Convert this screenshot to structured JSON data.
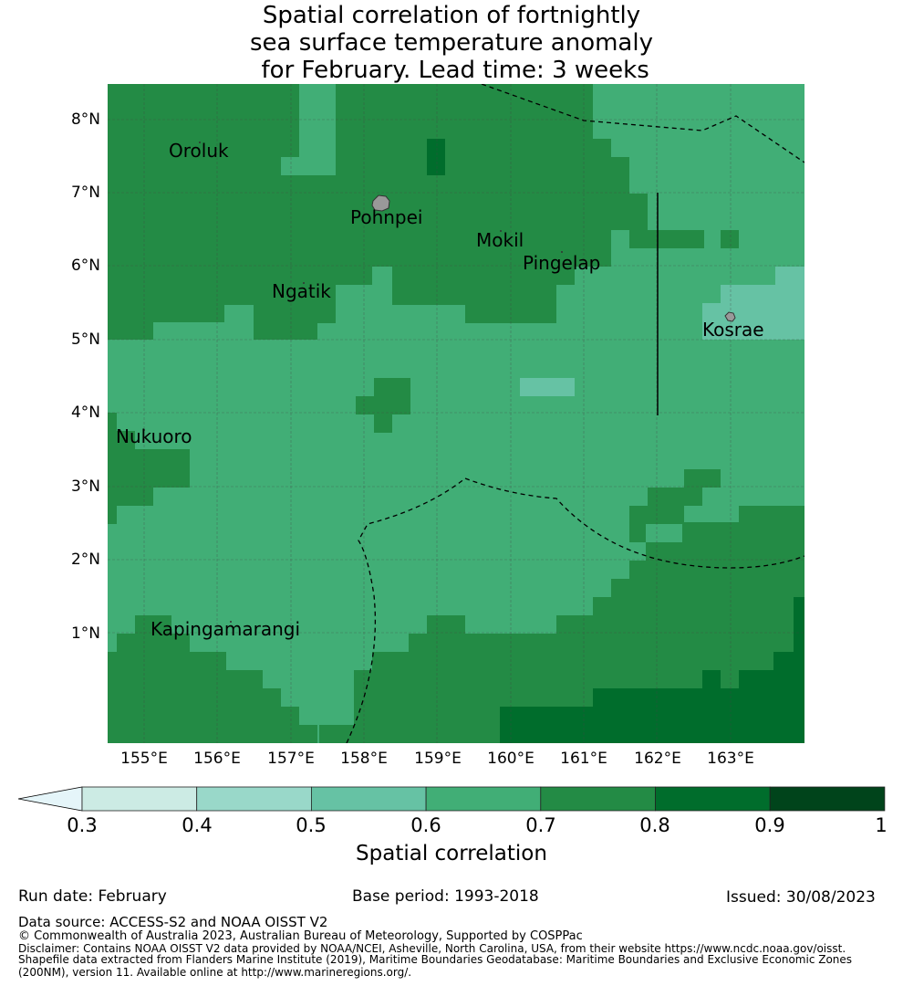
{
  "title_lines": [
    "Spatial correlation of fortnightly",
    "sea surface temperature anomaly",
    " for February. Lead time: 3 weeks"
  ],
  "places": [
    {
      "name": "Oroluk"
    },
    {
      "name": "Pohnpei"
    },
    {
      "name": "Mokil"
    },
    {
      "name": "Pingelap"
    },
    {
      "name": "Ngatik"
    },
    {
      "name": "Kosrae"
    },
    {
      "name": "Nukuoro"
    },
    {
      "name": "Kapingamarangi"
    }
  ],
  "lat_labels": [
    "8°N",
    "7°N",
    "6°N",
    "5°N",
    "4°N",
    "3°N",
    "2°N",
    "1°N"
  ],
  "lon_labels": [
    "155°E",
    "156°E",
    "157°E",
    "158°E",
    "159°E",
    "160°E",
    "161°E",
    "162°E",
    "163°E"
  ],
  "colorbar": {
    "title": "Spatial correlation",
    "ticks": [
      "0.3",
      "0.4",
      "0.5",
      "0.6",
      "0.7",
      "0.8",
      "0.9",
      "1"
    ],
    "colors": [
      "#ccebe4",
      "#99d8c9",
      "#66c2a4",
      "#41ae76",
      "#238b45",
      "#006d2c",
      "#00441b"
    ],
    "extend_color": "#e5f5f9"
  },
  "footer": {
    "run_date": "Run date: February",
    "base_period": "Base period: 1993-2018",
    "issued": "Issued: 30/08/2023",
    "data_source": "Data source: ACCESS-S2 and NOAA OISST V2",
    "copyright": "© Commonwealth of Australia 2023, Australian Bureau of Meteorology, Supported by COSPPac",
    "disclaimer": "Disclaimer: Contains NOAA OISST V2 data provided by NOAA/NCEI, Asheville, North Carolina, USA, from their website https://www.ncdc.noaa.gov/oisst.",
    "shapefile_1": "Shapefile data extracted from Flanders Marine Institute (2019), Maritime Boundaries Geodatabase: Maritime Boundaries and Exclusive Economic Zones",
    "shapefile_2": "(200NM), version 11. Available online at http://www.marineregions.org/."
  }
}
